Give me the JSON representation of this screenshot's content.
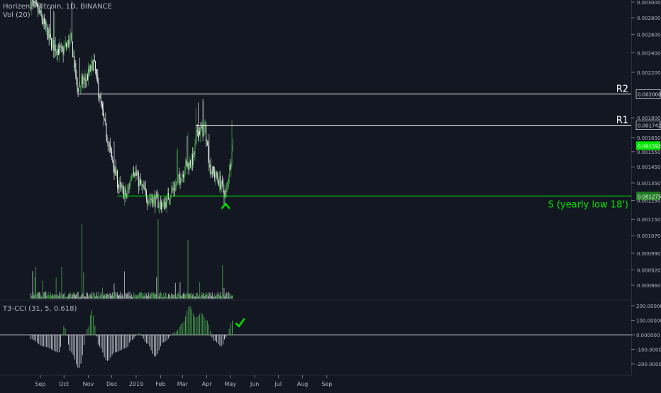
{
  "header": {
    "symbol": "Horizen / Bitcoin, 1D, BINANCE",
    "volume": "Vol (20)",
    "oscillator": "T3-CCI (31, 5, 0.618)"
  },
  "annotations": {
    "r2": "R2",
    "r1": "R1",
    "support": "S (yearly low 18')"
  },
  "colors": {
    "background": "#131722",
    "up": "#4caf50",
    "down": "#ffffff",
    "support": "#00e600",
    "resistance": "#ffffff",
    "grid": "#2a2e39",
    "text": "#b2b5be"
  },
  "chart_data": [
    {
      "type": "line",
      "title": "Horizen / Bitcoin, 1D, BINANCE",
      "x": [
        "2018-08-20",
        "2018-08-31",
        "2018-09-15",
        "2018-09-28",
        "2018-10-10",
        "2018-10-18",
        "2018-10-30",
        "2018-11-08",
        "2018-11-20",
        "2018-12-01",
        "2018-12-10",
        "2018-12-20",
        "2018-12-28",
        "2019-01-05",
        "2019-01-15",
        "2019-01-25",
        "2019-02-05",
        "2019-02-12",
        "2019-02-22",
        "2019-03-05",
        "2019-03-15",
        "2019-03-20",
        "2019-03-30",
        "2019-04-05",
        "2019-04-18",
        "2019-04-25",
        "2019-05-04"
      ],
      "series": [
        {
          "values": [
            0.003,
            0.00285,
            0.0025,
            0.0024,
            0.00255,
            0.00205,
            0.00215,
            0.0023,
            0.0018,
            0.0015,
            0.00133,
            0.00127,
            0.00145,
            0.00135,
            0.00127,
            0.00125,
            0.00122,
            0.00128,
            0.00135,
            0.00145,
            0.0015,
            0.0017,
            0.0017,
            0.00145,
            0.00135,
            0.00128,
            0.00159
          ]
        }
      ],
      "price_labels": [
        "0.003000",
        "0.002800",
        "0.002600",
        "0.002400",
        "0.002200",
        "0.002000",
        "0.001800",
        "0.001742",
        "0.001650",
        "0.001592",
        "0.001550",
        "0.001450",
        "0.001350",
        "0.001275",
        "0.001250",
        "0.001150",
        "0.001070",
        "0.000990",
        "0.000920",
        "0.000860"
      ],
      "levels": [
        {
          "name": "R2",
          "price": 0.002
        },
        {
          "name": "R1",
          "price": 0.001742
        },
        {
          "name": "S",
          "price": 0.001275
        }
      ],
      "current_price": 0.001592,
      "x_tick_labels": [
        "Sep",
        "Oct",
        "Nov",
        "Dec",
        "2019",
        "Feb",
        "Mar",
        "Apr",
        "May",
        "Jun",
        "Jul",
        "Aug",
        "Sep"
      ],
      "xlabel": "",
      "ylabel": "",
      "scale": "log"
    },
    {
      "type": "bar",
      "title": "T3-CCI (31, 5, 0.618)",
      "x": [
        "2018-08-20",
        "2018-09-05",
        "2018-09-25",
        "2018-10-01",
        "2018-10-10",
        "2018-10-20",
        "2018-11-01",
        "2018-11-05",
        "2018-11-15",
        "2018-11-25",
        "2018-12-05",
        "2018-12-20",
        "2018-12-25",
        "2019-01-05",
        "2019-01-15",
        "2019-01-25",
        "2019-02-05",
        "2019-02-20",
        "2019-03-01",
        "2019-03-10",
        "2019-03-18",
        "2019-03-25",
        "2019-04-01",
        "2019-04-10",
        "2019-04-20",
        "2019-04-25",
        "2019-05-04"
      ],
      "values": [
        -30,
        -80,
        -120,
        60,
        -120,
        -230,
        50,
        170,
        -80,
        -180,
        -120,
        -90,
        -40,
        10,
        -60,
        -150,
        -50,
        20,
        80,
        200,
        120,
        150,
        100,
        -40,
        -80,
        -20,
        100
      ],
      "y_tick_labels": [
        "200.000000",
        "100.000000",
        "0.000000",
        "-100.000000",
        "-200.000000"
      ],
      "ylim": [
        -250,
        220
      ]
    }
  ]
}
